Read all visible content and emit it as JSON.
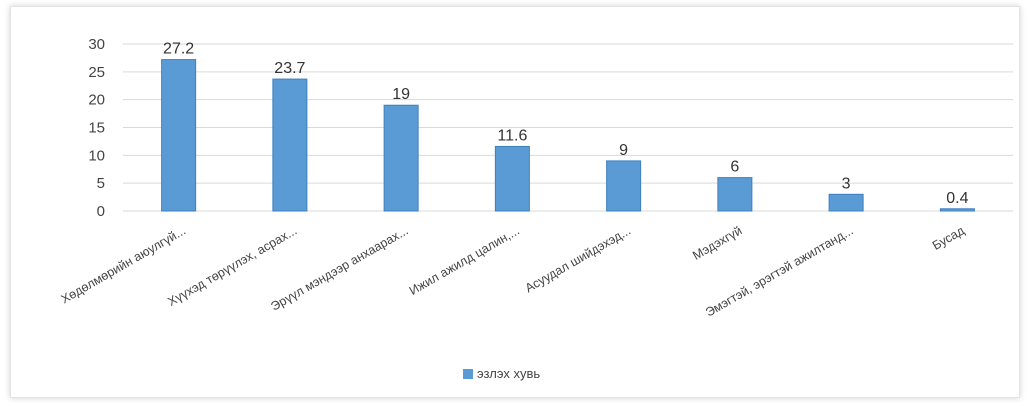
{
  "chart_data": {
    "type": "bar",
    "categories": [
      "Хөдөлмөрийн аюулгүй...",
      "Хүүхэд төрүүлэх, асрах...",
      "Эрүүл мэндээр анхаарах...",
      "Ижил ажилд цалин,...",
      "Асуудал шийдэхэд...",
      "Мэдэхгүй",
      "Эмэгтэй, эрэгтэй ажилтанд...",
      "Бусад"
    ],
    "series": [
      {
        "name": "эзлэх хувь",
        "values": [
          27.2,
          23.7,
          19,
          11.6,
          9,
          6,
          3,
          0.4
        ]
      }
    ],
    "data_labels": [
      "27.2",
      "23.7",
      "19",
      "11.6",
      "9",
      "6",
      "3",
      "0.4"
    ],
    "yticks": [
      "0",
      "5",
      "10",
      "15",
      "20",
      "25",
      "30"
    ],
    "ylim": [
      0,
      30
    ],
    "grid": true,
    "legend_position": "bottom",
    "colors": {
      "bar": "#5b9bd5",
      "bar_edge": "#3f7fbf",
      "grid": "#d9d9d9"
    }
  }
}
